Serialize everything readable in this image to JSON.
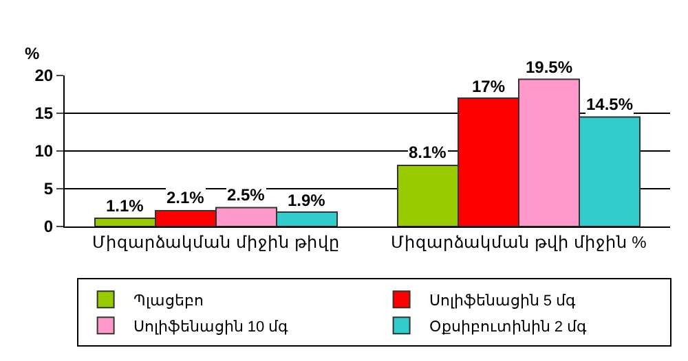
{
  "chart_data": {
    "type": "bar",
    "ylabel": "%",
    "categories": [
      "Միզարձակման միջին թիվը",
      "Միզարձակման թվի միջին %"
    ],
    "series": [
      {
        "name": "Պլացեբո",
        "color": "#99cc00",
        "values": [
          1.1,
          8.1
        ],
        "value_labels": [
          "1.1%",
          "8.1%"
        ]
      },
      {
        "name": "Սոլիֆենացին 5 մգ",
        "color": "#ff0000",
        "values": [
          2.1,
          17
        ],
        "value_labels": [
          "2.1%",
          "17%"
        ]
      },
      {
        "name": "Սոլիֆենացին 10 մգ",
        "color": "#ff99cc",
        "values": [
          2.5,
          19.5
        ],
        "value_labels": [
          "2.5%",
          "19.5%"
        ]
      },
      {
        "name": "Օքսիբուտինին 2 մգ",
        "color": "#33cccc",
        "values": [
          1.9,
          14.5
        ],
        "value_labels": [
          "1.9%",
          "14.5%"
        ]
      }
    ],
    "ylim": [
      0,
      20
    ],
    "yticks": [
      0,
      5,
      10,
      15,
      20
    ],
    "grid": "y",
    "legend": "bottom"
  }
}
